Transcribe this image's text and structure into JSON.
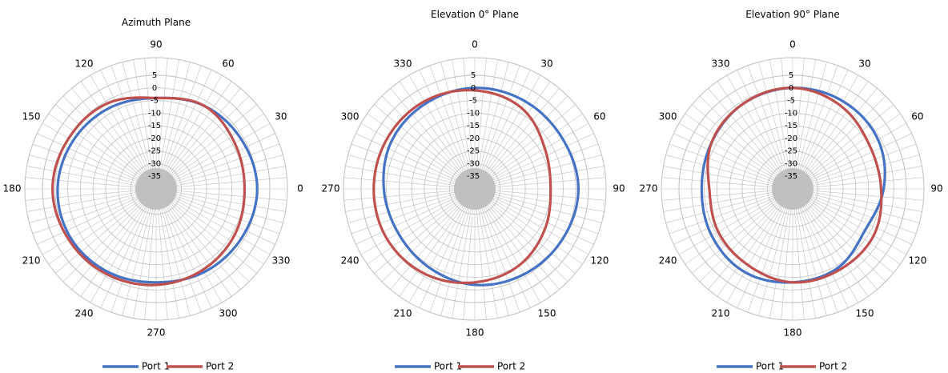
{
  "colors": {
    "port1": "#4472c4",
    "port2": "#c0504d",
    "grid": "#bfbfbf",
    "center": "#c0c0c0"
  },
  "chart_data": [
    {
      "type": "polar",
      "title": "Azimuth Plane",
      "rlim": [
        -40,
        5
      ],
      "r_ticks": [
        "5",
        "0",
        "-5",
        "-10",
        "-15",
        "-20",
        "-25",
        "-30",
        "-35"
      ],
      "angle_zero": "right",
      "angle_direction": "counterclockwise",
      "angle_labels": [
        "0",
        "30",
        "60",
        "90",
        "120",
        "150",
        "180",
        "210",
        "240",
        "270",
        "300",
        "330"
      ],
      "grid": true,
      "legend": "bottom",
      "series": [
        {
          "name": "Port 1",
          "theta": [
            0,
            30,
            60,
            90,
            120,
            150,
            180,
            210,
            240,
            270,
            300,
            330
          ],
          "r": [
            0,
            -1,
            -2,
            -4,
            -3,
            -2,
            -1,
            -1,
            -2,
            -3,
            -2,
            -1
          ]
        },
        {
          "name": "Port 2",
          "theta": [
            0,
            30,
            60,
            90,
            120,
            150,
            180,
            210,
            240,
            270,
            300,
            330
          ],
          "r": [
            -5,
            -4,
            -2,
            -4,
            -1,
            0,
            1,
            0,
            -1,
            -2,
            -3,
            -4
          ]
        }
      ]
    },
    {
      "type": "polar",
      "title": "Elevation 0° Plane",
      "rlim": [
        -40,
        5
      ],
      "r_ticks": [
        "5",
        "0",
        "-5",
        "-10",
        "-15",
        "-20",
        "-25",
        "-30",
        "-35"
      ],
      "angle_zero": "top",
      "angle_direction": "clockwise",
      "angle_labels": [
        "0",
        "30",
        "60",
        "90",
        "120",
        "150",
        "180",
        "210",
        "240",
        "270",
        "300",
        "330"
      ],
      "grid": true,
      "legend": "bottom",
      "series": [
        {
          "name": "Port 1",
          "theta": [
            0,
            30,
            60,
            90,
            120,
            150,
            180,
            210,
            240,
            270,
            300,
            330
          ],
          "r": [
            0,
            0,
            0,
            1,
            0,
            -1,
            -2,
            -4,
            -5,
            -4,
            -2,
            -1
          ]
        },
        {
          "name": "Port 2",
          "theta": [
            0,
            30,
            60,
            90,
            120,
            150,
            180,
            210,
            240,
            270,
            300,
            330
          ],
          "r": [
            -1,
            -3,
            -8,
            -10,
            -8,
            -5,
            -3,
            -1,
            0,
            0,
            0,
            0
          ]
        }
      ]
    },
    {
      "type": "polar",
      "title": "Elevation 90° Plane",
      "rlim": [
        -40,
        5
      ],
      "r_ticks": [
        "5",
        "0",
        "-5",
        "-10",
        "-15",
        "-20",
        "-25",
        "-30",
        "-35"
      ],
      "angle_zero": "top",
      "angle_direction": "clockwise",
      "angle_labels": [
        "0",
        "30",
        "60",
        "90",
        "120",
        "150",
        "180",
        "210",
        "240",
        "270",
        "300",
        "330"
      ],
      "grid": true,
      "legend": "bottom",
      "series": [
        {
          "name": "Port 1",
          "theta": [
            0,
            30,
            60,
            90,
            120,
            150,
            180,
            210,
            240,
            270,
            300,
            330
          ],
          "r": [
            0,
            0,
            -1,
            -4,
            -7,
            -4,
            -3,
            -2,
            -3,
            -4,
            -3,
            -1
          ]
        },
        {
          "name": "Port 2",
          "theta": [
            0,
            30,
            60,
            90,
            120,
            150,
            180,
            210,
            240,
            270,
            300,
            330
          ],
          "r": [
            0,
            -2,
            -5,
            -5,
            -3,
            -3,
            -3,
            -5,
            -6,
            -7,
            -3,
            -1
          ]
        }
      ]
    }
  ]
}
